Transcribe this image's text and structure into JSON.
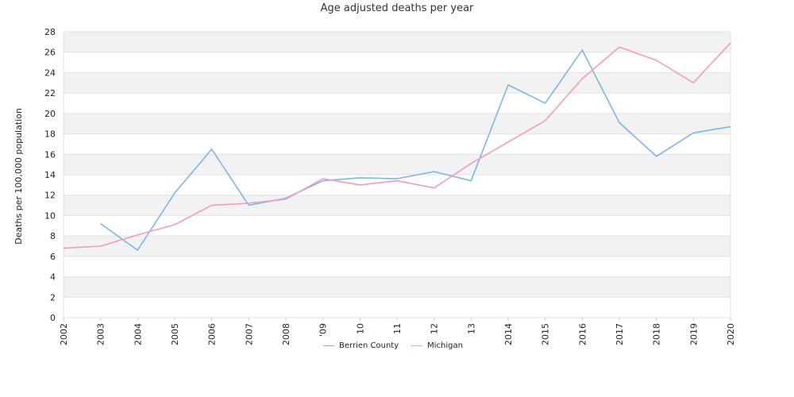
{
  "chart_data": {
    "type": "line",
    "title": "Age adjusted deaths per year",
    "ylabel": "Deaths per 100,000 population",
    "xlabel": "",
    "ylim": [
      0,
      28
    ],
    "y_ticks": [
      0,
      2,
      4,
      6,
      8,
      10,
      12,
      14,
      16,
      18,
      20,
      22,
      24,
      26,
      28
    ],
    "categories": [
      "2002",
      "2003",
      "2004",
      "2005",
      "2006",
      "2007",
      "2008",
      "2009",
      "2010",
      "2011",
      "2012",
      "2013",
      "2014",
      "2015",
      "2016",
      "2017",
      "2018",
      "2019",
      "2020"
    ],
    "x_tick_labels": [
      "2002",
      "2003",
      "2004",
      "2005",
      "2006",
      "2007",
      "2008",
      "'09",
      "10",
      "11",
      "12",
      "13",
      "2014",
      "2015",
      "2016",
      "2017",
      "2018",
      "2019",
      "2020"
    ],
    "grid": true,
    "legend_position": "bottom-center",
    "series": [
      {
        "name": "Berrien County",
        "color": "#7cb5ec",
        "values": [
          null,
          9.2,
          6.6,
          12.2,
          16.5,
          11.0,
          11.7,
          13.4,
          13.7,
          13.6,
          14.3,
          13.4,
          22.8,
          21.0,
          26.2,
          19.1,
          15.8,
          18.1,
          18.7
        ]
      },
      {
        "name": "Michigan",
        "color": "#f49ac1",
        "values": [
          6.8,
          7.0,
          8.1,
          9.1,
          11.0,
          11.2,
          11.6,
          13.6,
          13.0,
          13.4,
          12.7,
          15.1,
          17.2,
          19.3,
          23.4,
          26.5,
          25.2,
          23.0,
          26.9
        ]
      }
    ]
  }
}
